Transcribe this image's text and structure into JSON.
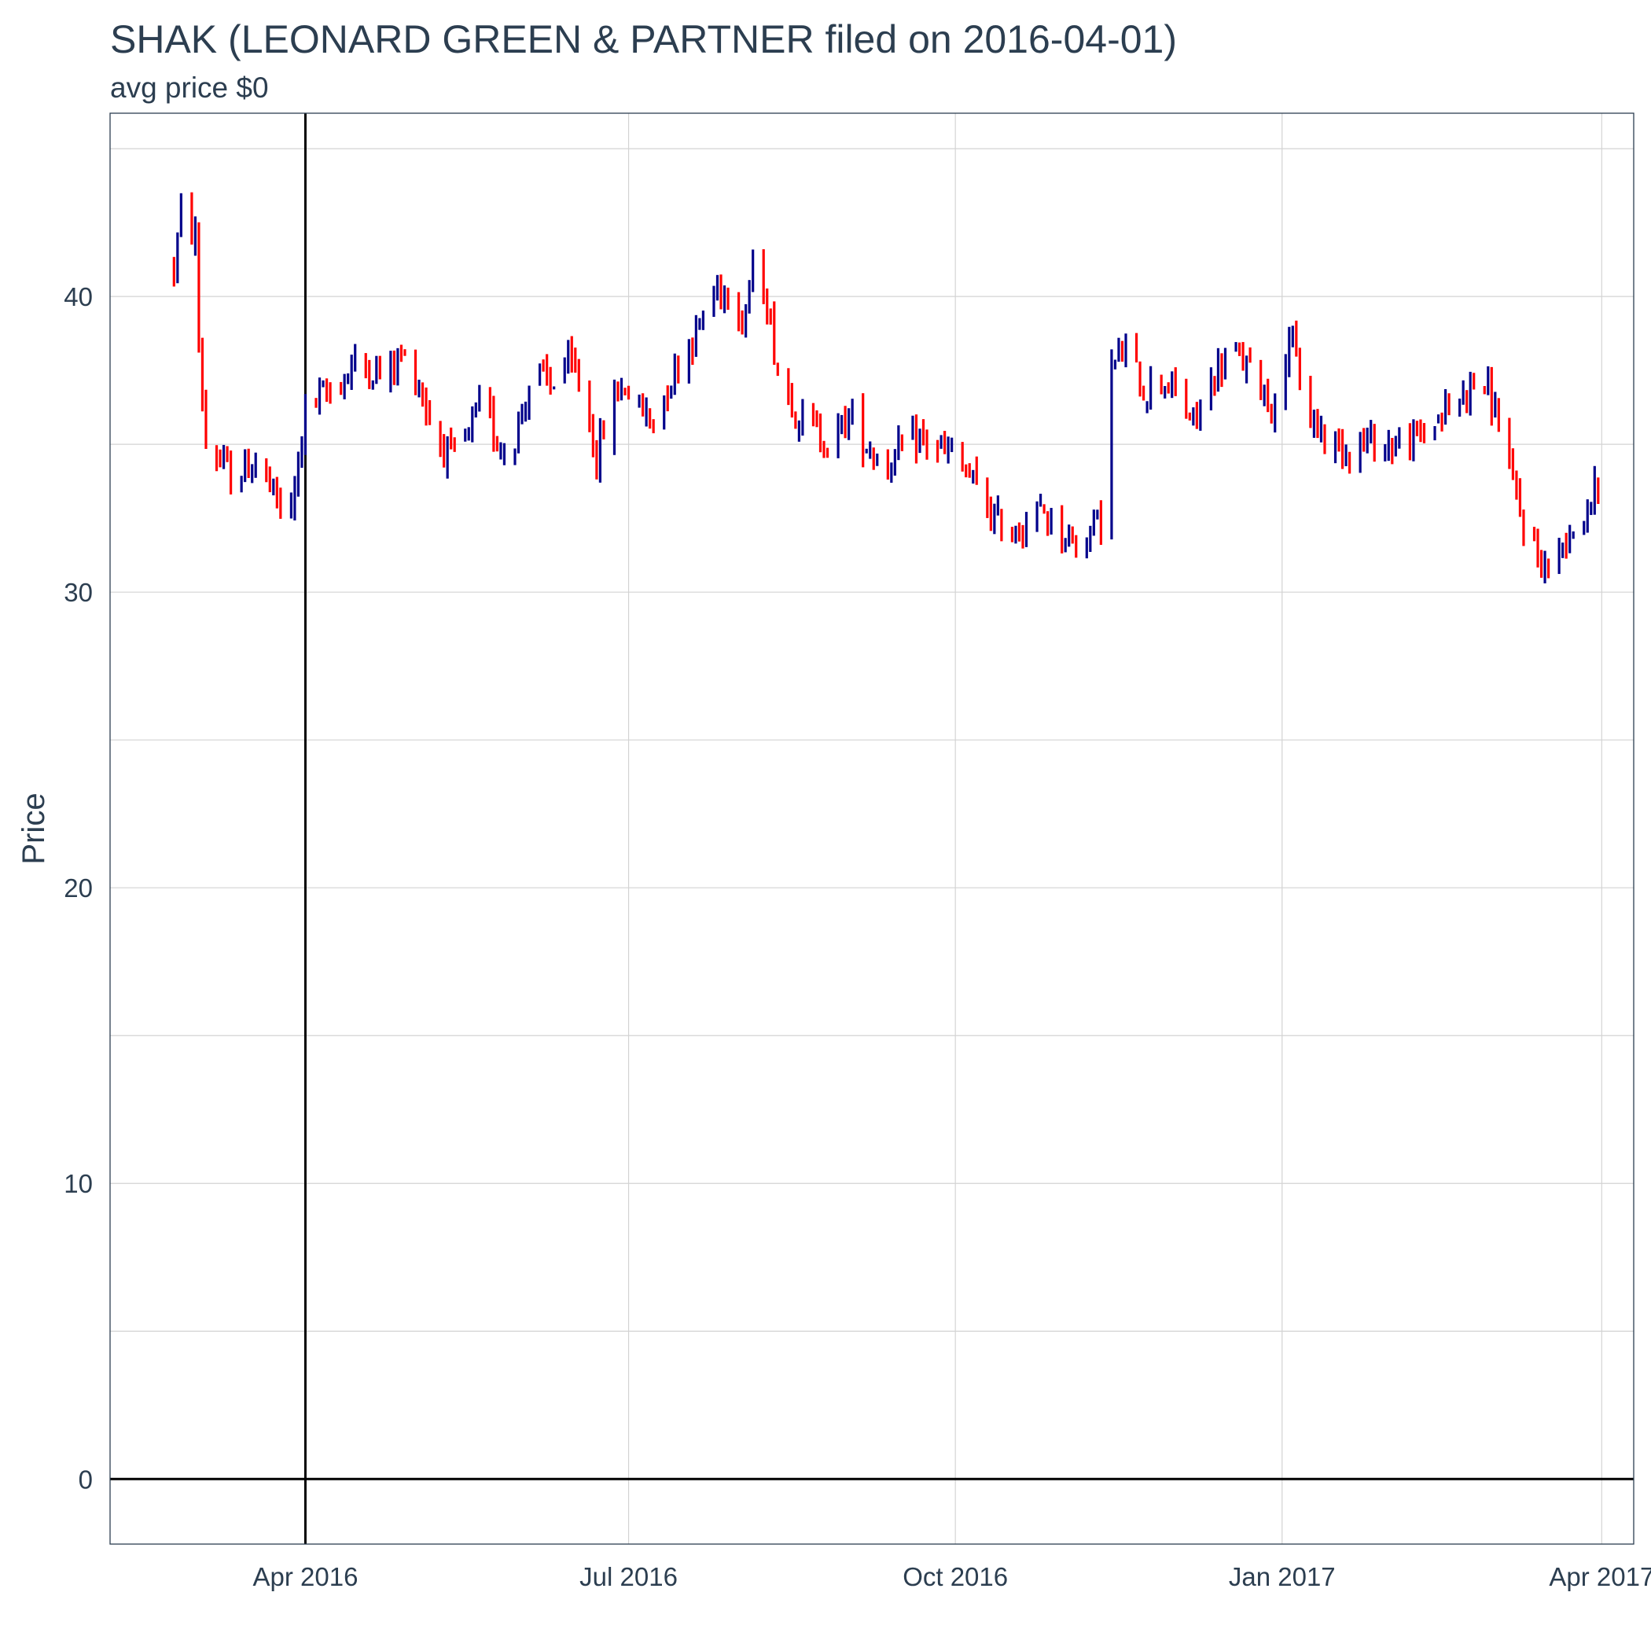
{
  "chart_data": {
    "type": "ohlc",
    "title": "SHAK (LEONARD GREEN & PARTNER filed on 2016-04-01)",
    "subtitle": "avg price $0",
    "xlabel": "",
    "ylabel": "Price",
    "ylim": [
      -2.2,
      46.2
    ],
    "xlim": [
      "2016-02-06",
      "2017-04-10"
    ],
    "x_ticks": [
      {
        "date": "2016-04-01",
        "label": "Apr 2016"
      },
      {
        "date": "2016-07-01",
        "label": "Jul 2016"
      },
      {
        "date": "2016-10-01",
        "label": "Oct 2016"
      },
      {
        "date": "2017-01-01",
        "label": "Jan 2017"
      },
      {
        "date": "2017-04-01",
        "label": "Apr 2017"
      }
    ],
    "y_ticks": [
      0,
      10,
      20,
      30,
      40
    ],
    "grid": true,
    "reference_lines": {
      "vertical_date": "2016-04-01",
      "horizontal_value": 0
    },
    "colors": {
      "up": "#00008b",
      "down": "#ff0000",
      "reference": "#000000",
      "grid": "#d3d3d3",
      "panel_border": "#2c3e50"
    },
    "price_path": [
      [
        "2016-02-24",
        41.0
      ],
      [
        "2016-02-26",
        42.8
      ],
      [
        "2016-03-01",
        42.0
      ],
      [
        "2016-03-02",
        38.3
      ],
      [
        "2016-03-04",
        35.0
      ],
      [
        "2016-03-09",
        34.2
      ],
      [
        "2016-03-12",
        33.8
      ],
      [
        "2016-03-18",
        34.5
      ],
      [
        "2016-03-24",
        33.0
      ],
      [
        "2016-03-28",
        32.6
      ],
      [
        "2016-03-30",
        34.5
      ],
      [
        "2016-04-01",
        36.2
      ],
      [
        "2016-04-08",
        36.8
      ],
      [
        "2016-04-16",
        37.8
      ],
      [
        "2016-04-23",
        37.3
      ],
      [
        "2016-04-28",
        38.0
      ],
      [
        "2016-05-02",
        37.4
      ],
      [
        "2016-05-07",
        35.5
      ],
      [
        "2016-05-12",
        34.5
      ],
      [
        "2016-05-17",
        35.3
      ],
      [
        "2016-05-21",
        36.5
      ],
      [
        "2016-05-25",
        35.1
      ],
      [
        "2016-05-29",
        34.8
      ],
      [
        "2016-06-04",
        37.5
      ],
      [
        "2016-06-09",
        37.0
      ],
      [
        "2016-06-13",
        37.8
      ],
      [
        "2016-06-18",
        37.0
      ],
      [
        "2016-06-22",
        34.5
      ],
      [
        "2016-06-26",
        36.5
      ],
      [
        "2016-06-30",
        37.0
      ],
      [
        "2016-07-04",
        36.2
      ],
      [
        "2016-07-08",
        35.8
      ],
      [
        "2016-07-14",
        37.6
      ],
      [
        "2016-07-20",
        38.8
      ],
      [
        "2016-07-25",
        40.2
      ],
      [
        "2016-07-29",
        40.4
      ],
      [
        "2016-08-02",
        39.2
      ],
      [
        "2016-08-06",
        41.3
      ],
      [
        "2016-08-09",
        39.8
      ],
      [
        "2016-08-12",
        37.5
      ],
      [
        "2016-08-17",
        36.2
      ],
      [
        "2016-08-22",
        35.5
      ],
      [
        "2016-08-27",
        35.0
      ],
      [
        "2016-09-01",
        36.0
      ],
      [
        "2016-09-06",
        35.0
      ],
      [
        "2016-09-11",
        34.3
      ],
      [
        "2016-09-16",
        34.8
      ],
      [
        "2016-09-21",
        35.2
      ],
      [
        "2016-09-26",
        34.9
      ],
      [
        "2016-10-01",
        34.5
      ],
      [
        "2016-10-06",
        33.7
      ],
      [
        "2016-10-11",
        32.6
      ],
      [
        "2016-10-16",
        32.0
      ],
      [
        "2016-10-21",
        32.4
      ],
      [
        "2016-10-26",
        32.7
      ],
      [
        "2016-10-31",
        32.0
      ],
      [
        "2016-11-05",
        31.6
      ],
      [
        "2016-11-09",
        32.3
      ],
      [
        "2016-11-12",
        32.5
      ],
      [
        "2016-11-14",
        37.6
      ],
      [
        "2016-11-18",
        38.2
      ],
      [
        "2016-11-23",
        36.8
      ],
      [
        "2016-11-28",
        37.3
      ],
      [
        "2016-12-03",
        36.5
      ],
      [
        "2016-12-07",
        35.7
      ],
      [
        "2016-12-11",
        36.8
      ],
      [
        "2016-12-16",
        38.0
      ],
      [
        "2016-12-21",
        37.8
      ],
      [
        "2016-12-26",
        37.0
      ],
      [
        "2016-12-30",
        36.2
      ],
      [
        "2017-01-03",
        38.8
      ],
      [
        "2017-01-08",
        36.0
      ],
      [
        "2017-01-13",
        35.3
      ],
      [
        "2017-01-18",
        34.9
      ],
      [
        "2017-01-25",
        35.1
      ],
      [
        "2017-02-01",
        35.0
      ],
      [
        "2017-02-07",
        35.1
      ],
      [
        "2017-02-13",
        35.8
      ],
      [
        "2017-02-19",
        36.4
      ],
      [
        "2017-02-24",
        37.2
      ],
      [
        "2017-02-28",
        36.8
      ],
      [
        "2017-03-04",
        35.5
      ],
      [
        "2017-03-07",
        33.5
      ],
      [
        "2017-03-10",
        32.3
      ],
      [
        "2017-03-13",
        31.5
      ],
      [
        "2017-03-16",
        30.8
      ],
      [
        "2017-03-19",
        31.0
      ],
      [
        "2017-03-22",
        32.0
      ],
      [
        "2017-03-26",
        32.4
      ],
      [
        "2017-03-29",
        33.2
      ],
      [
        "2017-04-01",
        33.6
      ]
    ]
  }
}
